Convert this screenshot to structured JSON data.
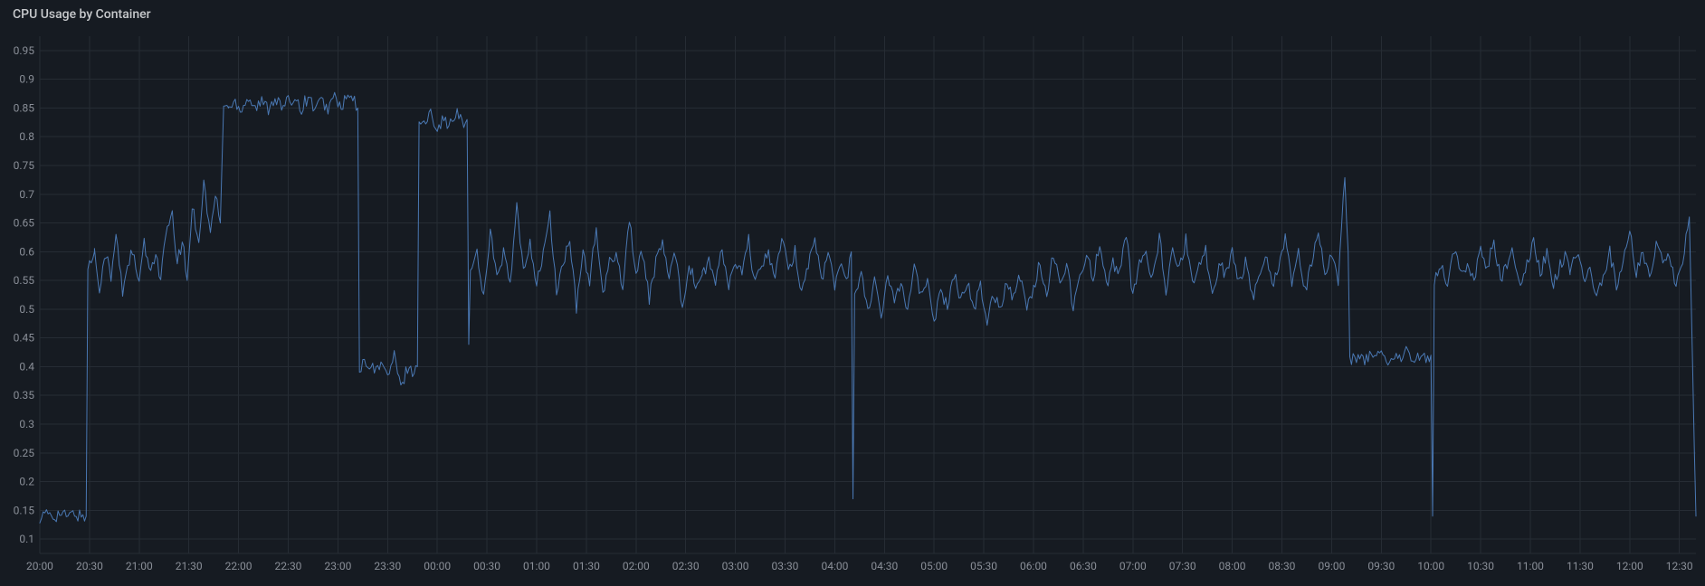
{
  "panel": {
    "title": "CPU Usage by Container",
    "title_color": "#c7c9cc",
    "title_fontsize": 14,
    "background_color": "#161b22",
    "chart": {
      "type": "line",
      "plot_bg": "#161b22",
      "grid_color": "#262c34",
      "axis_line_color": "#262c34",
      "tick_label_color": "#8a8f98",
      "tick_fontsize": 12,
      "series_color": "#4a78b3",
      "line_width": 1,
      "y": {
        "min": 0.075,
        "max": 0.975,
        "ticks": [
          0.1,
          0.15,
          0.2,
          0.25,
          0.3,
          0.35,
          0.4,
          0.45,
          0.5,
          0.55,
          0.6,
          0.65,
          0.7,
          0.75,
          0.8,
          0.85,
          0.9,
          0.95
        ]
      },
      "x": {
        "min": 0,
        "max": 1000,
        "ticks_at": [
          0,
          30,
          60,
          90,
          120,
          150,
          180,
          210,
          240,
          270,
          300,
          330,
          360,
          390,
          420,
          450,
          480,
          510,
          540,
          570,
          600,
          630,
          660,
          690,
          720,
          750,
          780,
          810,
          840,
          870,
          900,
          930,
          960,
          990
        ],
        "tick_labels": [
          "20:00",
          "20:30",
          "21:00",
          "21:30",
          "22:00",
          "22:30",
          "23:00",
          "23:30",
          "00:00",
          "00:30",
          "01:00",
          "01:30",
          "02:00",
          "02:30",
          "03:00",
          "03:30",
          "04:00",
          "04:30",
          "05:00",
          "05:30",
          "06:00",
          "06:30",
          "07:00",
          "07:30",
          "08:00",
          "08:30",
          "09:00",
          "09:30",
          "10:00",
          "10:30",
          "11:00",
          "11:30",
          "12:00",
          "12:30"
        ]
      },
      "segments": [
        {
          "x": [
            0,
            3,
            6,
            9,
            12,
            15,
            18,
            21,
            24,
            27,
            28
          ],
          "y": [
            0.14,
            0.14,
            0.145,
            0.14,
            0.145,
            0.14,
            0.14,
            0.145,
            0.14,
            0.14,
            0.14
          ]
        },
        {
          "x": [
            28,
            29,
            33
          ],
          "y": [
            0.14,
            0.57,
            0.6
          ]
        },
        {
          "x": [
            33,
            36,
            40,
            43,
            46,
            50,
            53,
            56,
            60,
            63,
            66,
            70,
            73,
            76,
            80,
            83,
            86,
            89
          ],
          "y": [
            0.6,
            0.54,
            0.6,
            0.55,
            0.63,
            0.53,
            0.58,
            0.6,
            0.54,
            0.62,
            0.56,
            0.6,
            0.55,
            0.63,
            0.66,
            0.58,
            0.62,
            0.55
          ]
        },
        {
          "x": [
            89,
            92,
            96,
            99,
            103,
            106,
            109
          ],
          "y": [
            0.55,
            0.68,
            0.62,
            0.72,
            0.63,
            0.7,
            0.65
          ]
        },
        {
          "x": [
            109,
            111,
            114
          ],
          "y": [
            0.65,
            0.86,
            0.85
          ]
        },
        {
          "x": [
            114,
            118,
            122,
            126,
            130,
            134,
            138,
            142,
            146,
            150,
            154,
            158,
            162,
            166,
            170,
            174,
            178,
            182,
            186,
            190,
            192
          ],
          "y": [
            0.85,
            0.86,
            0.85,
            0.87,
            0.85,
            0.86,
            0.85,
            0.87,
            0.85,
            0.86,
            0.87,
            0.85,
            0.87,
            0.85,
            0.86,
            0.85,
            0.87,
            0.85,
            0.87,
            0.86,
            0.85
          ]
        },
        {
          "x": [
            192,
            193,
            194,
            198,
            202,
            206,
            210,
            214,
            218,
            222,
            226,
            228
          ],
          "y": [
            0.85,
            0.38,
            0.4,
            0.41,
            0.39,
            0.41,
            0.38,
            0.42,
            0.36,
            0.4,
            0.39,
            0.4
          ]
        },
        {
          "x": [
            228,
            229,
            232,
            236,
            240,
            244,
            248,
            252,
            256,
            258
          ],
          "y": [
            0.4,
            0.83,
            0.82,
            0.84,
            0.82,
            0.83,
            0.82,
            0.84,
            0.82,
            0.83
          ]
        },
        {
          "x": [
            258,
            259,
            260,
            264,
            268,
            272,
            276,
            280,
            284,
            288,
            292,
            296,
            300,
            304,
            308,
            312,
            316,
            320,
            324,
            328,
            332,
            336,
            340,
            344,
            348,
            352,
            356,
            360,
            364,
            368,
            372,
            376,
            380,
            384,
            388,
            392,
            396,
            400
          ],
          "y": [
            0.83,
            0.45,
            0.56,
            0.6,
            0.52,
            0.64,
            0.55,
            0.6,
            0.54,
            0.68,
            0.56,
            0.62,
            0.54,
            0.6,
            0.66,
            0.53,
            0.58,
            0.62,
            0.5,
            0.6,
            0.55,
            0.64,
            0.52,
            0.58,
            0.6,
            0.54,
            0.66,
            0.56,
            0.6,
            0.52,
            0.58,
            0.62,
            0.55,
            0.6,
            0.5,
            0.58,
            0.54,
            0.56
          ]
        },
        {
          "x": [
            400,
            404,
            408,
            412,
            416,
            420,
            424,
            428,
            432,
            436,
            440,
            444,
            448,
            452,
            456,
            460,
            464,
            468,
            472,
            476,
            480,
            484,
            488,
            490
          ],
          "y": [
            0.56,
            0.58,
            0.55,
            0.6,
            0.54,
            0.58,
            0.56,
            0.62,
            0.54,
            0.58,
            0.6,
            0.55,
            0.63,
            0.56,
            0.6,
            0.53,
            0.58,
            0.62,
            0.55,
            0.6,
            0.54,
            0.58,
            0.56,
            0.6
          ]
        },
        {
          "x": [
            490,
            491,
            492,
            496,
            500,
            504,
            508,
            512,
            516,
            520,
            524,
            528,
            532,
            536,
            540,
            544,
            548,
            552,
            556,
            560,
            564,
            568,
            572,
            576,
            580,
            584,
            588,
            592,
            596,
            600
          ],
          "y": [
            0.6,
            0.17,
            0.53,
            0.56,
            0.5,
            0.55,
            0.48,
            0.56,
            0.52,
            0.55,
            0.5,
            0.58,
            0.52,
            0.55,
            0.48,
            0.54,
            0.5,
            0.56,
            0.52,
            0.55,
            0.5,
            0.54,
            0.48,
            0.53,
            0.5,
            0.55,
            0.52,
            0.56,
            0.5,
            0.54
          ]
        },
        {
          "x": [
            600,
            604,
            608,
            612,
            616,
            620,
            624,
            628,
            632,
            636,
            640,
            644,
            648,
            652,
            656,
            660,
            664,
            668,
            672,
            676,
            680,
            684,
            688,
            692,
            696,
            700,
            704,
            708,
            712,
            716,
            720,
            724,
            728,
            732,
            736,
            740,
            744,
            748,
            752,
            756,
            760,
            764,
            768,
            772,
            776,
            780,
            784,
            788,
            790
          ],
          "y": [
            0.54,
            0.58,
            0.52,
            0.6,
            0.55,
            0.58,
            0.5,
            0.56,
            0.6,
            0.55,
            0.62,
            0.54,
            0.58,
            0.56,
            0.63,
            0.52,
            0.58,
            0.6,
            0.55,
            0.63,
            0.53,
            0.6,
            0.57,
            0.62,
            0.55,
            0.58,
            0.6,
            0.53,
            0.58,
            0.56,
            0.6,
            0.55,
            0.58,
            0.52,
            0.55,
            0.6,
            0.54,
            0.58,
            0.62,
            0.55,
            0.6,
            0.53,
            0.58,
            0.64,
            0.56,
            0.6,
            0.55,
            0.73,
            0.6
          ]
        },
        {
          "x": [
            790,
            791,
            794,
            798,
            802,
            806,
            810,
            814,
            818,
            822,
            826,
            830,
            834,
            838,
            840
          ],
          "y": [
            0.6,
            0.41,
            0.42,
            0.41,
            0.42,
            0.41,
            0.42,
            0.41,
            0.42,
            0.41,
            0.43,
            0.41,
            0.42,
            0.41,
            0.42
          ]
        },
        {
          "x": [
            840,
            841,
            842,
            846,
            850,
            854,
            858,
            862,
            866,
            870,
            874,
            878,
            882,
            886,
            890,
            894,
            898,
            902,
            906,
            910,
            914,
            918,
            922,
            924
          ],
          "y": [
            0.42,
            0.14,
            0.55,
            0.58,
            0.54,
            0.6,
            0.56,
            0.58,
            0.55,
            0.6,
            0.57,
            0.62,
            0.55,
            0.58,
            0.6,
            0.54,
            0.58,
            0.62,
            0.56,
            0.6,
            0.54,
            0.58,
            0.6,
            0.56
          ]
        },
        {
          "x": [
            924,
            928,
            932,
            936,
            940,
            944,
            948,
            952,
            956,
            960,
            964,
            968,
            972,
            976,
            980,
            984,
            988,
            992,
            996,
            1000
          ],
          "y": [
            0.56,
            0.6,
            0.55,
            0.58,
            0.52,
            0.56,
            0.6,
            0.54,
            0.58,
            0.64,
            0.56,
            0.6,
            0.55,
            0.62,
            0.58,
            0.6,
            0.54,
            0.58,
            0.66,
            0.14
          ]
        }
      ]
    }
  }
}
